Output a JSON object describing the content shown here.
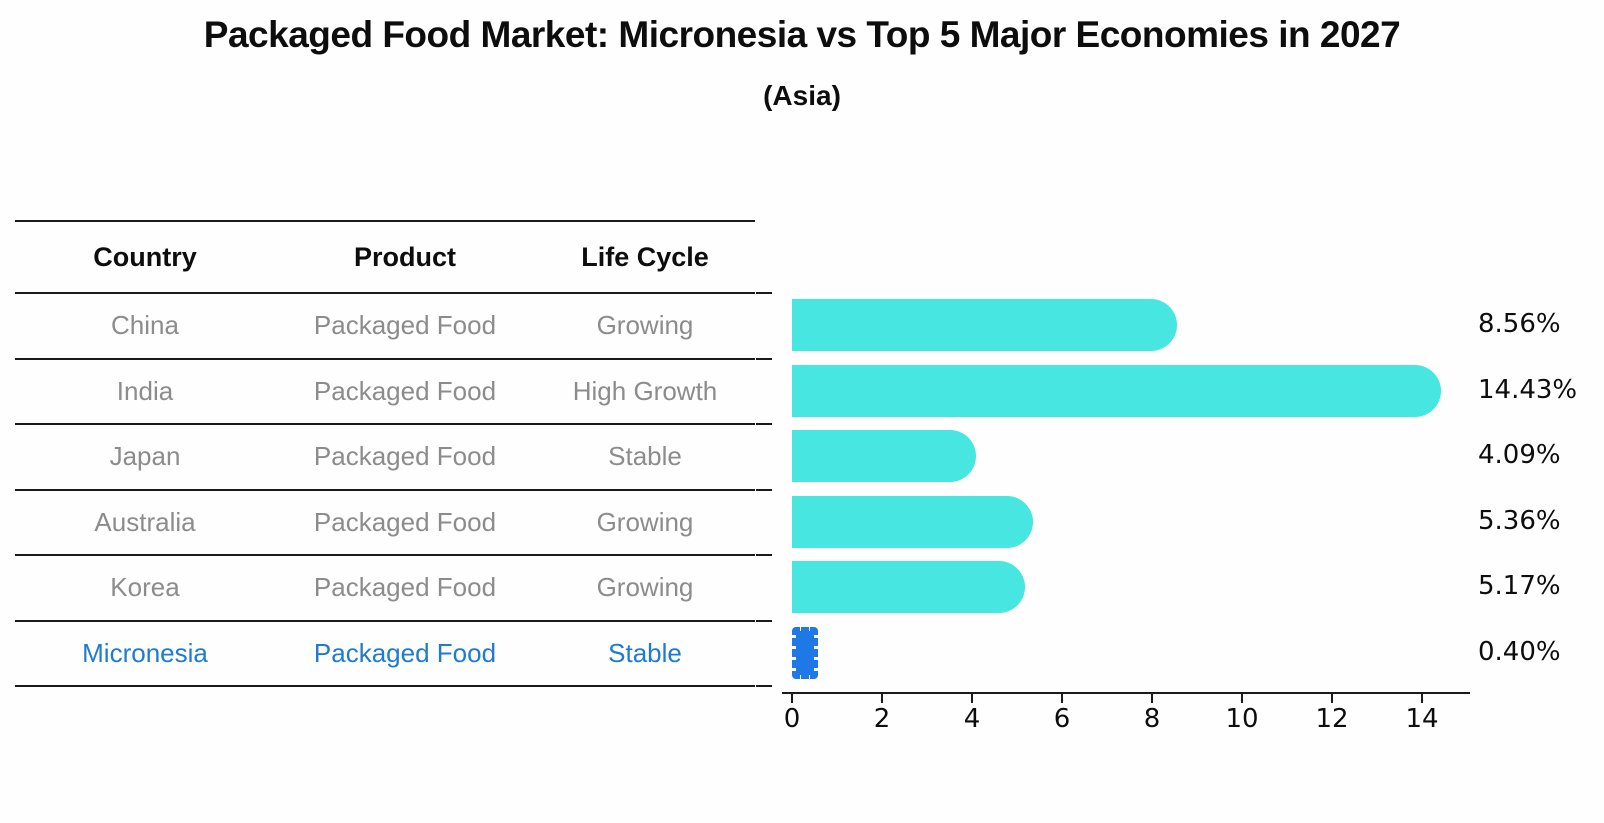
{
  "title": "Packaged Food Market: Micronesia vs Top 5 Major Economies in 2027",
  "subtitle": "(Asia)",
  "table": {
    "headers": [
      "Country",
      "Product",
      "Life Cycle"
    ],
    "rows": [
      {
        "country": "China",
        "product": "Packaged Food",
        "life_cycle": "Growing",
        "highlight": false
      },
      {
        "country": "India",
        "product": "Packaged Food",
        "life_cycle": "High Growth",
        "highlight": false
      },
      {
        "country": "Japan",
        "product": "Packaged Food",
        "life_cycle": "Stable",
        "highlight": false
      },
      {
        "country": "Australia",
        "product": "Packaged Food",
        "life_cycle": "Growing",
        "highlight": false
      },
      {
        "country": "Korea",
        "product": "Packaged Food",
        "life_cycle": "Growing",
        "highlight": false
      },
      {
        "country": "Micronesia",
        "product": "Packaged Food",
        "life_cycle": "Stable",
        "highlight": true
      }
    ]
  },
  "chart_data": {
    "type": "bar",
    "orientation": "horizontal",
    "title": "Packaged Food Market: Micronesia vs Top 5 Major Economies in 2027 (Asia)",
    "categories": [
      "China",
      "India",
      "Japan",
      "Australia",
      "Korea",
      "Micronesia"
    ],
    "values": [
      8.56,
      14.43,
      4.09,
      5.36,
      5.17,
      0.4
    ],
    "value_labels": [
      "8.56%",
      "14.43%",
      "4.09%",
      "5.36%",
      "5.17%",
      "0.40%"
    ],
    "unit": "%",
    "x_ticks": [
      0,
      2,
      4,
      6,
      8,
      10,
      12,
      14
    ],
    "xlim": [
      0,
      15.2
    ],
    "grid": false,
    "legend": false,
    "bar_color": "#47E6E1",
    "highlight_bar_color": "#1E79E6",
    "highlight_index": 5,
    "highlight_bar_style": "dashed-edge"
  },
  "colors": {
    "bar_cyan": "#47E6E1",
    "bar_blue": "#1E79E6",
    "highlight_text_blue": "#1f7ad1",
    "table_text_gray": "#8c8c8c",
    "axis_black": "#1a1a1a"
  }
}
